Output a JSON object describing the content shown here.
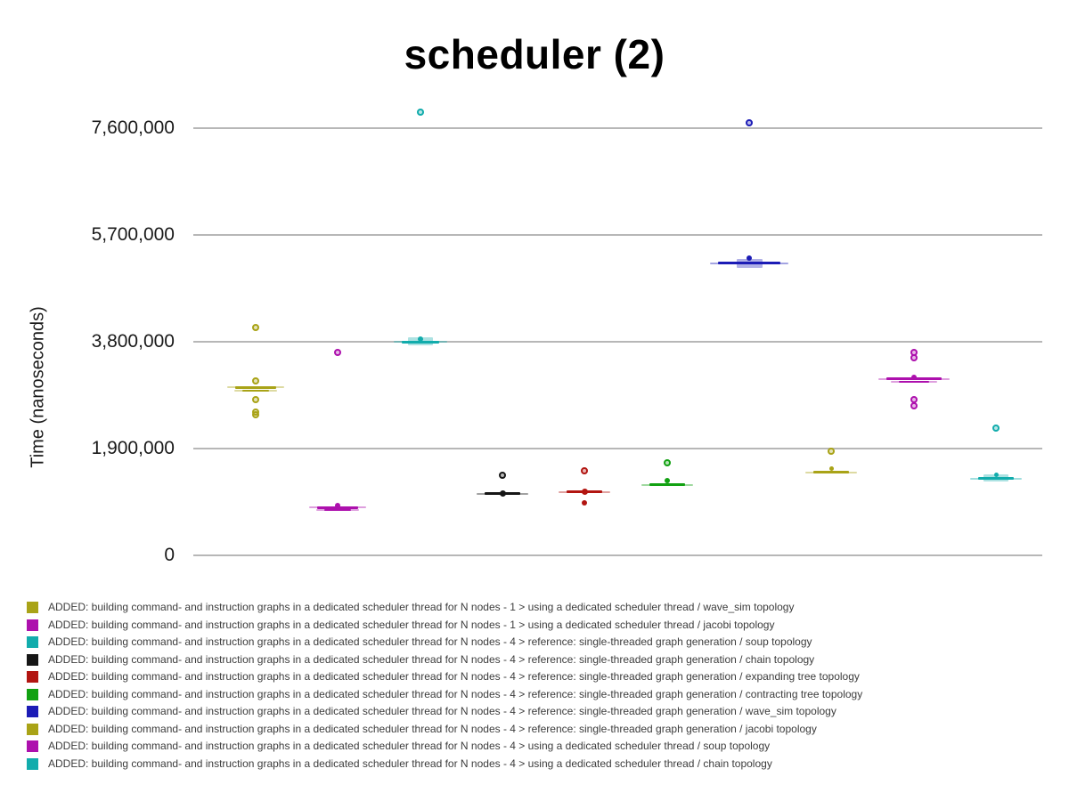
{
  "chart_data": {
    "type": "scatter",
    "title": "scheduler (2)",
    "ylabel": "Time (nanoseconds)",
    "xlabel": "",
    "ylim": [
      0,
      8075000
    ],
    "grid": true,
    "legend_position": "bottom",
    "gridline_color": "#b7b7b7",
    "yticks": [
      {
        "value": 0,
        "label": "0"
      },
      {
        "value": 1900000,
        "label": "1,900,000"
      },
      {
        "value": 3800000,
        "label": "3,800,000"
      },
      {
        "value": 5700000,
        "label": "5,700,000"
      },
      {
        "value": 7600000,
        "label": "7,600,000"
      }
    ],
    "series": [
      {
        "label": "ADDED: building command- and instruction graphs in a dedicated scheduler thread for N nodes - 1 > using a dedicated scheduler thread / wave_sim topology",
        "color": "#a9a317",
        "mean_lines": [
          {
            "value": 2980000,
            "width": 46,
            "thick": 3
          },
          {
            "value": 2925000,
            "width": 30,
            "thick": 2
          }
        ],
        "points": [
          {
            "value": 4050000,
            "filled": false
          },
          {
            "value": 3100000,
            "filled": false
          },
          {
            "value": 2770000,
            "filled": false
          },
          {
            "value": 2540000,
            "filled": false
          },
          {
            "value": 2490000,
            "filled": false
          }
        ]
      },
      {
        "label": "ADDED: building command- and instruction graphs in a dedicated scheduler thread for N nodes - 1 > using a dedicated scheduler thread / jacobi topology",
        "color": "#ad10ad",
        "mean_lines": [
          {
            "value": 840000,
            "width": 46,
            "thick": 3
          },
          {
            "value": 795000,
            "width": 30,
            "thick": 2
          }
        ],
        "points": [
          {
            "value": 3600000,
            "filled": false
          },
          {
            "value": 875000,
            "filled": true,
            "size": 6
          }
        ]
      },
      {
        "label": "ADDED: building command- and instruction graphs in a dedicated scheduler thread for N nodes - 4 > reference: single-threaded graph generation / soup topology",
        "color": "#12acac",
        "box": {
          "low": 3730000,
          "high": 3870000,
          "width": 28
        },
        "mean_lines": [
          {
            "value": 3790000,
            "width": 42,
            "thick": 3
          }
        ],
        "points": [
          {
            "value": 7880000,
            "filled": false
          },
          {
            "value": 3840000,
            "filled": true,
            "size": 6
          }
        ]
      },
      {
        "label": "ADDED: building command- and instruction graphs in a dedicated scheduler thread for N nodes - 4 > reference: single-threaded graph generation / chain topology",
        "color": "#161616",
        "mean_lines": [
          {
            "value": 1090000,
            "width": 40,
            "thick": 3
          }
        ],
        "points": [
          {
            "value": 1425000,
            "filled": false
          },
          {
            "value": 1095000,
            "filled": true,
            "size": 7
          }
        ]
      },
      {
        "label": "ADDED: building command- and instruction graphs in a dedicated scheduler thread for N nodes - 4 > reference: single-threaded graph generation / expanding tree topology",
        "color": "#b21511",
        "mean_lines": [
          {
            "value": 1120000,
            "width": 40,
            "thick": 3
          }
        ],
        "points": [
          {
            "value": 1490000,
            "filled": false
          },
          {
            "value": 1125000,
            "filled": true,
            "size": 7
          },
          {
            "value": 920000,
            "filled": true,
            "size": 6
          }
        ]
      },
      {
        "label": "ADDED: building command- and instruction graphs in a dedicated scheduler thread for N nodes - 4 > reference: single-threaded graph generation / contracting tree topology",
        "color": "#12a112",
        "mean_lines": [
          {
            "value": 1250000,
            "width": 40,
            "thick": 3
          }
        ],
        "points": [
          {
            "value": 1640000,
            "filled": false
          },
          {
            "value": 1330000,
            "filled": true,
            "size": 6
          }
        ]
      },
      {
        "label": "ADDED: building command- and instruction graphs in a dedicated scheduler thread for N nodes - 4 > reference: single-threaded graph generation / wave_sim topology",
        "color": "#1c1cb6",
        "box": {
          "low": 5110000,
          "high": 5260000,
          "width": 29
        },
        "mean_lines": [
          {
            "value": 5190000,
            "width": 70,
            "thick": 3
          }
        ],
        "points": [
          {
            "value": 7690000,
            "filled": false
          },
          {
            "value": 5280000,
            "filled": true,
            "size": 6
          }
        ]
      },
      {
        "label": "ADDED: building command- and instruction graphs in a dedicated scheduler thread for N nodes - 4 > reference: single-threaded graph generation / jacobi topology",
        "color": "#a9a317",
        "mean_lines": [
          {
            "value": 1465000,
            "width": 40,
            "thick": 3
          }
        ],
        "points": [
          {
            "value": 1850000,
            "filled": false
          },
          {
            "value": 1530000,
            "filled": true,
            "size": 5
          }
        ]
      },
      {
        "label": "ADDED: building command- and instruction graphs in a dedicated scheduler thread for N nodes - 4 > using a dedicated scheduler thread / soup topology",
        "color": "#ad10ad",
        "mean_lines": [
          {
            "value": 3130000,
            "width": 62,
            "thick": 3
          },
          {
            "value": 3080000,
            "width": 34,
            "thick": 2
          }
        ],
        "points": [
          {
            "value": 3600000,
            "filled": false
          },
          {
            "value": 3500000,
            "filled": false
          },
          {
            "value": 3160000,
            "filled": true,
            "size": 6
          },
          {
            "value": 2770000,
            "filled": false
          },
          {
            "value": 2660000,
            "filled": false
          }
        ]
      },
      {
        "label": "ADDED: building command- and instruction graphs in a dedicated scheduler thread for N nodes - 4 > using a dedicated scheduler thread / chain topology",
        "color": "#12acac",
        "box": {
          "low": 1300000,
          "high": 1440000,
          "width": 28
        },
        "mean_lines": [
          {
            "value": 1360000,
            "width": 40,
            "thick": 3
          }
        ],
        "points": [
          {
            "value": 2260000,
            "filled": false
          },
          {
            "value": 1430000,
            "filled": true,
            "size": 5
          }
        ]
      }
    ]
  }
}
